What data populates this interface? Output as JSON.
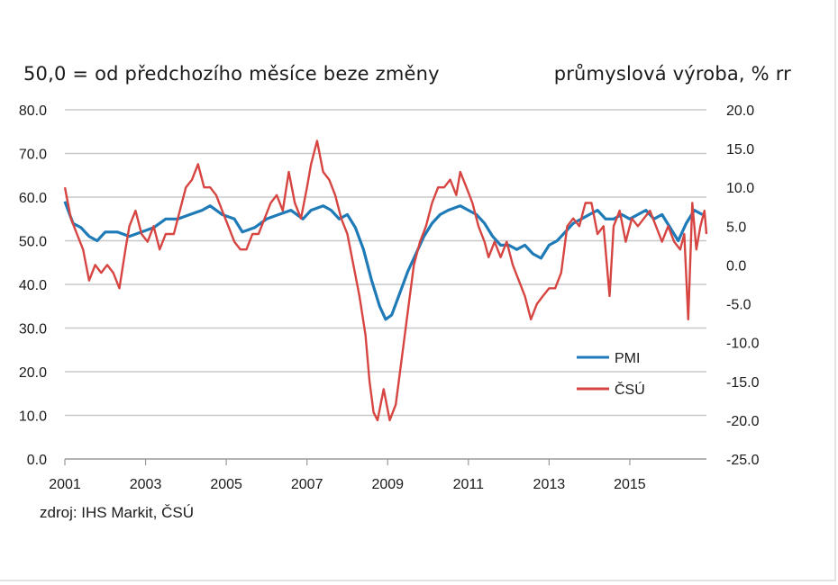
{
  "header": {
    "left_label": "50,0 = od předchozího měsíce beze změny",
    "right_label": "průmyslová výroba, % rr"
  },
  "source": "zdroj: IHS Markit, ČSÚ",
  "colors": {
    "pmi": "#1f7ab8",
    "csu": "#d64541",
    "grid": "#c8c8c8"
  },
  "chart_data": {
    "type": "line",
    "title": "",
    "x_ticks": [
      "2001",
      "2003",
      "2005",
      "2007",
      "2009",
      "2011",
      "2013",
      "2015"
    ],
    "y_left": {
      "range": [
        0,
        80
      ],
      "ticks": [
        "0.0",
        "10.0",
        "20.0",
        "30.0",
        "40.0",
        "50.0",
        "60.0",
        "70.0",
        "80.0"
      ]
    },
    "y_right": {
      "range": [
        -25,
        20
      ],
      "ticks": [
        "-25.0",
        "-20.0",
        "-15.0",
        "-10.0",
        "-5.0",
        "0.0",
        "5.0",
        "10.0",
        "15.0",
        "20.0"
      ]
    },
    "x_range": [
      2001.0,
      2016.9
    ],
    "legend_position": "lower-right",
    "series": [
      {
        "name": "PMI",
        "axis": "left",
        "points": [
          [
            2001.0,
            59
          ],
          [
            2001.2,
            54
          ],
          [
            2001.4,
            53
          ],
          [
            2001.6,
            51
          ],
          [
            2001.8,
            50
          ],
          [
            2002.0,
            52
          ],
          [
            2002.3,
            52
          ],
          [
            2002.6,
            51
          ],
          [
            2002.9,
            52
          ],
          [
            2003.2,
            53
          ],
          [
            2003.5,
            55
          ],
          [
            2003.8,
            55
          ],
          [
            2004.1,
            56
          ],
          [
            2004.4,
            57
          ],
          [
            2004.6,
            58
          ],
          [
            2004.9,
            56
          ],
          [
            2005.2,
            55
          ],
          [
            2005.4,
            52
          ],
          [
            2005.7,
            53
          ],
          [
            2006.0,
            55
          ],
          [
            2006.3,
            56
          ],
          [
            2006.6,
            57
          ],
          [
            2006.9,
            55
          ],
          [
            2007.1,
            57
          ],
          [
            2007.4,
            58
          ],
          [
            2007.6,
            57
          ],
          [
            2007.8,
            55
          ],
          [
            2008.0,
            56
          ],
          [
            2008.2,
            53
          ],
          [
            2008.4,
            48
          ],
          [
            2008.6,
            41
          ],
          [
            2008.8,
            35
          ],
          [
            2008.95,
            32
          ],
          [
            2009.1,
            33
          ],
          [
            2009.3,
            38
          ],
          [
            2009.5,
            43
          ],
          [
            2009.7,
            47
          ],
          [
            2009.9,
            51
          ],
          [
            2010.1,
            54
          ],
          [
            2010.3,
            56
          ],
          [
            2010.5,
            57
          ],
          [
            2010.8,
            58
          ],
          [
            2011.0,
            57
          ],
          [
            2011.2,
            56
          ],
          [
            2011.4,
            54
          ],
          [
            2011.6,
            51
          ],
          [
            2011.8,
            49
          ],
          [
            2012.0,
            49
          ],
          [
            2012.2,
            48
          ],
          [
            2012.4,
            49
          ],
          [
            2012.6,
            47
          ],
          [
            2012.8,
            46
          ],
          [
            2013.0,
            49
          ],
          [
            2013.2,
            50
          ],
          [
            2013.4,
            52
          ],
          [
            2013.6,
            54
          ],
          [
            2013.8,
            55
          ],
          [
            2014.0,
            56
          ],
          [
            2014.2,
            57
          ],
          [
            2014.4,
            55
          ],
          [
            2014.6,
            55
          ],
          [
            2014.8,
            56
          ],
          [
            2015.0,
            55
          ],
          [
            2015.2,
            56
          ],
          [
            2015.4,
            57
          ],
          [
            2015.6,
            55
          ],
          [
            2015.8,
            56
          ],
          [
            2016.0,
            53
          ],
          [
            2016.2,
            50
          ],
          [
            2016.4,
            54
          ],
          [
            2016.6,
            57
          ],
          [
            2016.8,
            56
          ]
        ]
      },
      {
        "name": "ČSÚ",
        "axis": "right",
        "points": [
          [
            2001.0,
            10
          ],
          [
            2001.15,
            6
          ],
          [
            2001.3,
            4
          ],
          [
            2001.45,
            2
          ],
          [
            2001.6,
            -2
          ],
          [
            2001.75,
            0
          ],
          [
            2001.9,
            -1
          ],
          [
            2002.05,
            0
          ],
          [
            2002.2,
            -1
          ],
          [
            2002.35,
            -3
          ],
          [
            2002.5,
            2
          ],
          [
            2002.6,
            5
          ],
          [
            2002.75,
            7
          ],
          [
            2002.9,
            4
          ],
          [
            2003.05,
            3
          ],
          [
            2003.2,
            5
          ],
          [
            2003.35,
            2
          ],
          [
            2003.5,
            4
          ],
          [
            2003.7,
            4
          ],
          [
            2003.85,
            7
          ],
          [
            2004.0,
            10
          ],
          [
            2004.15,
            11
          ],
          [
            2004.3,
            13
          ],
          [
            2004.45,
            10
          ],
          [
            2004.6,
            10
          ],
          [
            2004.75,
            9
          ],
          [
            2004.9,
            7
          ],
          [
            2005.05,
            5
          ],
          [
            2005.2,
            3
          ],
          [
            2005.35,
            2
          ],
          [
            2005.5,
            2
          ],
          [
            2005.65,
            4
          ],
          [
            2005.8,
            4
          ],
          [
            2005.95,
            6
          ],
          [
            2006.1,
            8
          ],
          [
            2006.25,
            9
          ],
          [
            2006.4,
            7
          ],
          [
            2006.55,
            12
          ],
          [
            2006.7,
            8
          ],
          [
            2006.85,
            6
          ],
          [
            2007.0,
            10
          ],
          [
            2007.1,
            13
          ],
          [
            2007.25,
            16
          ],
          [
            2007.4,
            12
          ],
          [
            2007.55,
            11
          ],
          [
            2007.7,
            9
          ],
          [
            2007.85,
            6
          ],
          [
            2008.0,
            4
          ],
          [
            2008.15,
            0
          ],
          [
            2008.3,
            -4
          ],
          [
            2008.45,
            -9
          ],
          [
            2008.55,
            -15
          ],
          [
            2008.65,
            -19
          ],
          [
            2008.75,
            -20
          ],
          [
            2008.9,
            -16
          ],
          [
            2009.05,
            -20
          ],
          [
            2009.2,
            -18
          ],
          [
            2009.35,
            -12
          ],
          [
            2009.5,
            -6
          ],
          [
            2009.65,
            0
          ],
          [
            2009.8,
            3
          ],
          [
            2009.95,
            5
          ],
          [
            2010.1,
            8
          ],
          [
            2010.25,
            10
          ],
          [
            2010.4,
            10
          ],
          [
            2010.55,
            11
          ],
          [
            2010.7,
            9
          ],
          [
            2010.8,
            12
          ],
          [
            2010.95,
            10
          ],
          [
            2011.1,
            8
          ],
          [
            2011.25,
            5
          ],
          [
            2011.4,
            3
          ],
          [
            2011.5,
            1
          ],
          [
            2011.65,
            3
          ],
          [
            2011.8,
            1
          ],
          [
            2011.95,
            3
          ],
          [
            2012.1,
            0
          ],
          [
            2012.25,
            -2
          ],
          [
            2012.4,
            -4
          ],
          [
            2012.55,
            -7
          ],
          [
            2012.7,
            -5
          ],
          [
            2012.85,
            -4
          ],
          [
            2013.0,
            -3
          ],
          [
            2013.15,
            -3
          ],
          [
            2013.3,
            -1
          ],
          [
            2013.45,
            5
          ],
          [
            2013.6,
            6
          ],
          [
            2013.75,
            5
          ],
          [
            2013.9,
            8
          ],
          [
            2014.05,
            8
          ],
          [
            2014.2,
            4
          ],
          [
            2014.35,
            5
          ],
          [
            2014.5,
            -4
          ],
          [
            2014.6,
            5
          ],
          [
            2014.75,
            7
          ],
          [
            2014.9,
            3
          ],
          [
            2015.05,
            6
          ],
          [
            2015.2,
            5
          ],
          [
            2015.35,
            6
          ],
          [
            2015.5,
            7
          ],
          [
            2015.65,
            5
          ],
          [
            2015.8,
            3
          ],
          [
            2015.95,
            5
          ],
          [
            2016.1,
            3
          ],
          [
            2016.25,
            2
          ],
          [
            2016.35,
            4
          ],
          [
            2016.45,
            -7
          ],
          [
            2016.55,
            8
          ],
          [
            2016.65,
            2
          ],
          [
            2016.75,
            5
          ],
          [
            2016.85,
            7
          ],
          [
            2016.9,
            4
          ]
        ]
      }
    ]
  }
}
